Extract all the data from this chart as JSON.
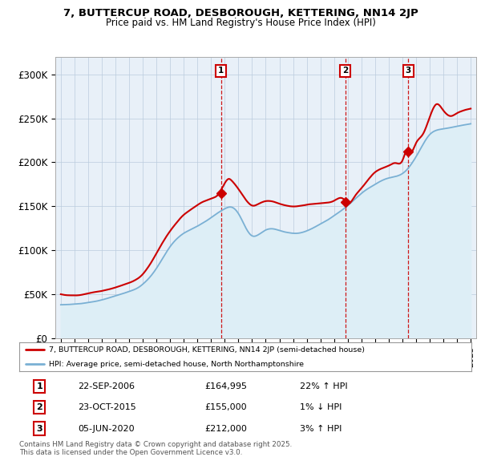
{
  "title_line1": "7, BUTTERCUP ROAD, DESBOROUGH, KETTERING, NN14 2JP",
  "title_line2": "Price paid vs. HM Land Registry's House Price Index (HPI)",
  "ylim": [
    0,
    320000
  ],
  "yticks": [
    0,
    50000,
    100000,
    150000,
    200000,
    250000,
    300000
  ],
  "ytick_labels": [
    "£0",
    "£50K",
    "£100K",
    "£150K",
    "£200K",
    "£250K",
    "£300K"
  ],
  "color_property": "#cc0000",
  "color_hpi": "#7ab0d4",
  "color_hpi_fill": "#ddeef6",
  "chart_bg": "#e8f0f8",
  "sale_dates": [
    2006.72,
    2015.81,
    2020.43
  ],
  "sale_prices": [
    164995,
    155000,
    212000
  ],
  "sale_labels": [
    "1",
    "2",
    "3"
  ],
  "legend_property": "7, BUTTERCUP ROAD, DESBOROUGH, KETTERING, NN14 2JP (semi-detached house)",
  "legend_hpi": "HPI: Average price, semi-detached house, North Northamptonshire",
  "table_data": [
    [
      "1",
      "22-SEP-2006",
      "£164,995",
      "22% ↑ HPI"
    ],
    [
      "2",
      "23-OCT-2015",
      "£155,000",
      "1% ↓ HPI"
    ],
    [
      "3",
      "05-JUN-2020",
      "£212,000",
      "3% ↑ HPI"
    ]
  ],
  "footnote": "Contains HM Land Registry data © Crown copyright and database right 2025.\nThis data is licensed under the Open Government Licence v3.0.",
  "background_color": "#ffffff",
  "hpi_key_points": [
    [
      1995.0,
      38000
    ],
    [
      1996.0,
      39000
    ],
    [
      1997.0,
      41000
    ],
    [
      1998.0,
      44000
    ],
    [
      1999.0,
      48000
    ],
    [
      2000.0,
      53000
    ],
    [
      2001.0,
      62000
    ],
    [
      2002.0,
      80000
    ],
    [
      2003.0,
      105000
    ],
    [
      2004.0,
      120000
    ],
    [
      2005.0,
      128000
    ],
    [
      2006.0,
      138000
    ],
    [
      2007.0,
      148000
    ],
    [
      2007.5,
      150000
    ],
    [
      2008.0,
      143000
    ],
    [
      2008.5,
      128000
    ],
    [
      2009.0,
      118000
    ],
    [
      2009.5,
      120000
    ],
    [
      2010.0,
      125000
    ],
    [
      2011.0,
      125000
    ],
    [
      2012.0,
      122000
    ],
    [
      2013.0,
      125000
    ],
    [
      2014.0,
      133000
    ],
    [
      2015.0,
      143000
    ],
    [
      2016.0,
      155000
    ],
    [
      2017.0,
      168000
    ],
    [
      2018.0,
      178000
    ],
    [
      2019.0,
      185000
    ],
    [
      2020.0,
      190000
    ],
    [
      2021.0,
      210000
    ],
    [
      2022.0,
      235000
    ],
    [
      2023.0,
      242000
    ],
    [
      2024.0,
      245000
    ],
    [
      2025.0,
      248000
    ]
  ],
  "prop_key_points": [
    [
      1995.0,
      50000
    ],
    [
      1996.0,
      49000
    ],
    [
      1997.0,
      51000
    ],
    [
      1998.0,
      54000
    ],
    [
      1999.0,
      58000
    ],
    [
      2000.0,
      63000
    ],
    [
      2001.0,
      72000
    ],
    [
      2002.0,
      95000
    ],
    [
      2003.0,
      120000
    ],
    [
      2004.0,
      138000
    ],
    [
      2005.0,
      150000
    ],
    [
      2006.0,
      158000
    ],
    [
      2006.5,
      162000
    ],
    [
      2007.0,
      175000
    ],
    [
      2007.3,
      180000
    ],
    [
      2007.5,
      178000
    ],
    [
      2008.0,
      168000
    ],
    [
      2008.5,
      157000
    ],
    [
      2009.0,
      150000
    ],
    [
      2009.5,
      152000
    ],
    [
      2010.0,
      155000
    ],
    [
      2011.0,
      152000
    ],
    [
      2012.0,
      148000
    ],
    [
      2013.0,
      150000
    ],
    [
      2014.0,
      152000
    ],
    [
      2015.0,
      155000
    ],
    [
      2015.5,
      158000
    ],
    [
      2015.81,
      155000
    ],
    [
      2016.0,
      152000
    ],
    [
      2016.5,
      160000
    ],
    [
      2017.0,
      170000
    ],
    [
      2017.5,
      180000
    ],
    [
      2018.0,
      188000
    ],
    [
      2018.5,
      192000
    ],
    [
      2019.0,
      195000
    ],
    [
      2019.5,
      198000
    ],
    [
      2020.0,
      200000
    ],
    [
      2020.43,
      212000
    ],
    [
      2020.5,
      210000
    ],
    [
      2021.0,
      220000
    ],
    [
      2021.5,
      230000
    ],
    [
      2022.0,
      250000
    ],
    [
      2022.5,
      265000
    ],
    [
      2023.0,
      258000
    ],
    [
      2023.5,
      252000
    ],
    [
      2024.0,
      255000
    ],
    [
      2024.5,
      258000
    ],
    [
      2025.0,
      260000
    ]
  ]
}
